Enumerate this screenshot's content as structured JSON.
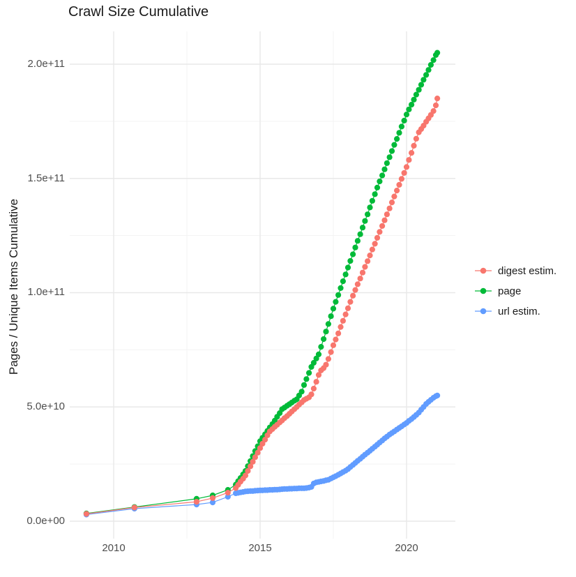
{
  "chart": {
    "title": "Crawl Size Cumulative",
    "y_axis_title": "Pages / Unique Items Cumulative"
  },
  "chart_data": {
    "type": "line",
    "title": "Crawl Size Cumulative",
    "xlabel": "",
    "ylabel": "Pages / Unique Items Cumulative",
    "legend_position": "right",
    "grid": true,
    "x_unit": "year",
    "value_unit": "items, stored as billions (1e9)",
    "xlim": [
      2008.5,
      2021.7
    ],
    "ylim_e9": [
      -10,
      215
    ],
    "x_ticks": [
      {
        "value": 2010,
        "label": "2010"
      },
      {
        "value": 2015,
        "label": "2015"
      },
      {
        "value": 2020,
        "label": "2020"
      }
    ],
    "x_minor": [
      2012.5,
      2017.5
    ],
    "y_ticks": [
      {
        "value_e9": 0,
        "label": "0.0e+00"
      },
      {
        "value_e9": 50,
        "label": "5.0e+10"
      },
      {
        "value_e9": 100,
        "label": "1.0e+11"
      },
      {
        "value_e9": 150,
        "label": "1.5e+11"
      },
      {
        "value_e9": 200,
        "label": "2.0e+11"
      }
    ],
    "y_minor_e9": [
      25,
      75,
      125,
      175
    ],
    "x_years": [
      2009.07,
      2010.71,
      2012.83,
      2013.38,
      2013.9,
      2014.17,
      2014.25,
      2014.33,
      2014.42,
      2014.5,
      2014.58,
      2014.67,
      2014.75,
      2014.83,
      2014.92,
      2015.0,
      2015.08,
      2015.17,
      2015.25,
      2015.33,
      2015.42,
      2015.5,
      2015.58,
      2015.67,
      2015.75,
      2015.83,
      2015.92,
      2016.0,
      2016.08,
      2016.17,
      2016.25,
      2016.33,
      2016.42,
      2016.5,
      2016.58,
      2016.67,
      2016.75,
      2016.83,
      2016.92,
      2017.0,
      2017.08,
      2017.17,
      2017.25,
      2017.33,
      2017.42,
      2017.5,
      2017.58,
      2017.67,
      2017.75,
      2017.83,
      2017.92,
      2018.0,
      2018.08,
      2018.17,
      2018.25,
      2018.33,
      2018.42,
      2018.5,
      2018.58,
      2018.67,
      2018.75,
      2018.83,
      2018.92,
      2019.0,
      2019.08,
      2019.17,
      2019.25,
      2019.33,
      2019.42,
      2019.5,
      2019.58,
      2019.67,
      2019.75,
      2019.83,
      2019.92,
      2020.0,
      2020.08,
      2020.17,
      2020.25,
      2020.33,
      2020.42,
      2020.5,
      2020.58,
      2020.67,
      2020.75,
      2020.83,
      2020.92,
      2021.0,
      2021.05
    ],
    "draw_order": [
      1,
      2,
      0
    ],
    "series": [
      {
        "name": "digest estim.",
        "color": "#F8766D",
        "values_e9": [
          3.2,
          6.0,
          8.5,
          10.1,
          12.5,
          14.5,
          15.9,
          17.3,
          18.6,
          20,
          22,
          24,
          26,
          28,
          30,
          32,
          33.9,
          35.7,
          37.6,
          39.3,
          40.3,
          41.3,
          42.2,
          43.2,
          44.1,
          45.1,
          46,
          47,
          48,
          49,
          50,
          51,
          52,
          53,
          53.6,
          54.2,
          55.5,
          58,
          61,
          64,
          66,
          67,
          68.5,
          71,
          74,
          77,
          79.5,
          82.2,
          85,
          87.7,
          90.5,
          93.2,
          96,
          98.7,
          101.2,
          103.7,
          106.2,
          108.8,
          111.3,
          113.8,
          116.3,
          118.9,
          121.4,
          124,
          126.6,
          129.2,
          131.7,
          134.3,
          136.9,
          139.5,
          142.1,
          144.7,
          147.2,
          149.8,
          152.4,
          155,
          158.1,
          161.2,
          164.3,
          167.4,
          170.2,
          171.6,
          173.1,
          174.8,
          176.3,
          177.8,
          179.5,
          182,
          185
        ]
      },
      {
        "name": "page",
        "color": "#00BA38",
        "values_e9": [
          3.4,
          6.2,
          9.8,
          11.3,
          13.7,
          16,
          17.5,
          18.9,
          20.5,
          22,
          24.1,
          26.3,
          28.5,
          30.7,
          32.8,
          35,
          36.5,
          38,
          39.5,
          41,
          42.5,
          44,
          45.7,
          47.3,
          49,
          49.7,
          50.5,
          51.2,
          51.9,
          52.7,
          53.3,
          55,
          56.7,
          59.6,
          62.2,
          64.9,
          67.5,
          69.3,
          71.2,
          73,
          76.3,
          79.7,
          83,
          86.3,
          89.7,
          93,
          96,
          99,
          102,
          105,
          108,
          111,
          113.9,
          116.8,
          119.8,
          122.7,
          125.6,
          128.5,
          131.4,
          134.3,
          137.3,
          140.2,
          143.1,
          146,
          148.7,
          151.3,
          154,
          156.7,
          159.3,
          162,
          164.7,
          167.3,
          170,
          172.7,
          175.3,
          178,
          180.2,
          182.3,
          184.5,
          186.7,
          188.8,
          191,
          193.2,
          195.3,
          197.5,
          199.7,
          201.8,
          204,
          205
        ]
      },
      {
        "name": "url estim.",
        "color": "#619CFF",
        "values_e9": [
          2.9,
          5.5,
          7.3,
          8.2,
          10.7,
          12.2,
          12.4,
          12.6,
          12.8,
          13,
          13.1,
          13.2,
          13.2,
          13.3,
          13.4,
          13.5,
          13.5,
          13.6,
          13.6,
          13.7,
          13.7,
          13.8,
          13.8,
          13.9,
          14,
          14.1,
          14.1,
          14.2,
          14.2,
          14.3,
          14.3,
          14.4,
          14.4,
          14.4,
          14.5,
          14.7,
          15,
          16.5,
          17,
          17.2,
          17.4,
          17.6,
          17.9,
          18.1,
          18.7,
          19.2,
          19.7,
          20.3,
          20.9,
          21.5,
          22.1,
          22.8,
          23.7,
          24.6,
          25.5,
          26.4,
          27.3,
          28.2,
          29.1,
          30,
          30.8,
          31.7,
          32.6,
          33.5,
          34.4,
          35.3,
          36.2,
          37,
          37.9,
          38.6,
          39.3,
          40.1,
          40.8,
          41.5,
          42.3,
          43,
          43.9,
          44.7,
          45.6,
          46.5,
          47.5,
          48.8,
          50,
          51.3,
          52.2,
          53.1,
          54,
          54.7,
          55
        ]
      }
    ]
  },
  "style": {
    "background": "#ffffff",
    "grid_major_color": "#e8e8e8",
    "grid_minor_color": "#f3f3f3",
    "axis_text_color": "#4d4d4d",
    "title_color": "#1a1a1a"
  }
}
